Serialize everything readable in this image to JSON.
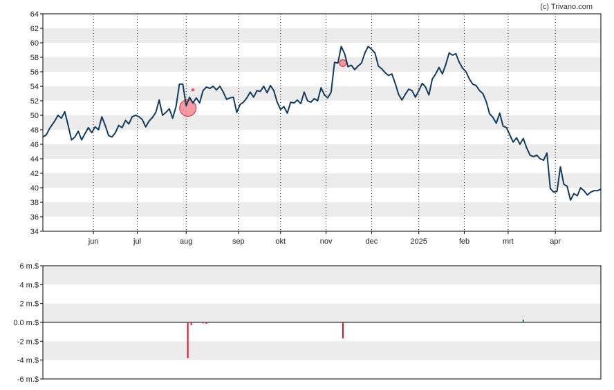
{
  "credit": "(c) Trivano.com",
  "colors": {
    "price_line": "#123a5c",
    "band": "#ececec",
    "sell_bar": "#e0102a",
    "buy_bar": "#1f7a3a",
    "marker_fill": "#f08a94",
    "marker_stroke": "#d9243a",
    "axis": "#000000",
    "grid": "#000000"
  },
  "chart_data": [
    {
      "type": "line",
      "title": "",
      "xlabel": "",
      "ylabel": "",
      "ylim": [
        34,
        64
      ],
      "yticks": [
        34,
        36,
        38,
        40,
        42,
        44,
        46,
        48,
        50,
        52,
        54,
        56,
        58,
        60,
        62,
        64
      ],
      "xlim_days": [
        0,
        331
      ],
      "x_ticks": [
        {
          "label": "jun",
          "day": 30
        },
        {
          "label": "jul",
          "day": 56
        },
        {
          "label": "aug",
          "day": 85
        },
        {
          "label": "sep",
          "day": 116
        },
        {
          "label": "okt",
          "day": 141
        },
        {
          "label": "nov",
          "day": 168
        },
        {
          "label": "dec",
          "day": 195
        },
        {
          "label": "2025",
          "day": 223
        },
        {
          "label": "feb",
          "day": 250
        },
        {
          "label": "mrt",
          "day": 276
        },
        {
          "label": "apr",
          "day": 304
        }
      ],
      "grid": "vertical dotted at month starts",
      "series": [
        {
          "values": [
            [
              0,
              47.0
            ],
            [
              2,
              47.3
            ],
            [
              4,
              48.2
            ],
            [
              7,
              49.2
            ],
            [
              9,
              50.0
            ],
            [
              11,
              49.6
            ],
            [
              13,
              50.5
            ],
            [
              15,
              48.6
            ],
            [
              17,
              46.6
            ],
            [
              19,
              47.0
            ],
            [
              21,
              47.8
            ],
            [
              23,
              46.6
            ],
            [
              25,
              47.5
            ],
            [
              27,
              48.3
            ],
            [
              29,
              47.6
            ],
            [
              31,
              48.4
            ],
            [
              33,
              48.0
            ],
            [
              35,
              49.8
            ],
            [
              37,
              48.6
            ],
            [
              39,
              47.2
            ],
            [
              41,
              47.0
            ],
            [
              43,
              47.6
            ],
            [
              45,
              48.6
            ],
            [
              47,
              48.3
            ],
            [
              49,
              49.3
            ],
            [
              51,
              48.8
            ],
            [
              53,
              49.8
            ],
            [
              55,
              50.0
            ],
            [
              57,
              49.8
            ],
            [
              59,
              49.4
            ],
            [
              61,
              48.4
            ],
            [
              63,
              49.2
            ],
            [
              65,
              49.7
            ],
            [
              67,
              50.4
            ],
            [
              69,
              52.1
            ],
            [
              71,
              50.0
            ],
            [
              73,
              50.4
            ],
            [
              75,
              50.9
            ],
            [
              77,
              49.6
            ],
            [
              79,
              51.2
            ],
            [
              81,
              54.3
            ],
            [
              83,
              54.3
            ],
            [
              85,
              51.3
            ],
            [
              87,
              52.5
            ],
            [
              89,
              51.7
            ],
            [
              91,
              52.4
            ],
            [
              93,
              51.7
            ],
            [
              95,
              53.4
            ],
            [
              97,
              53.9
            ],
            [
              99,
              53.7
            ],
            [
              101,
              54.0
            ],
            [
              103,
              53.5
            ],
            [
              105,
              54.0
            ],
            [
              107,
              53.2
            ],
            [
              109,
              52.2
            ],
            [
              111,
              52.4
            ],
            [
              113,
              52.5
            ],
            [
              115,
              50.4
            ],
            [
              117,
              51.5
            ],
            [
              119,
              51.8
            ],
            [
              121,
              52.4
            ],
            [
              123,
              53.2
            ],
            [
              125,
              52.5
            ],
            [
              127,
              53.4
            ],
            [
              129,
              53.3
            ],
            [
              131,
              54.0
            ],
            [
              133,
              53.1
            ],
            [
              135,
              54.1
            ],
            [
              137,
              53.4
            ],
            [
              139,
              51.8
            ],
            [
              141,
              50.8
            ],
            [
              143,
              51.2
            ],
            [
              145,
              50.3
            ],
            [
              147,
              51.8
            ],
            [
              149,
              51.7
            ],
            [
              151,
              52.1
            ],
            [
              153,
              51.6
            ],
            [
              155,
              53.2
            ],
            [
              157,
              52.0
            ],
            [
              159,
              51.8
            ],
            [
              161,
              52.3
            ],
            [
              163,
              52.0
            ],
            [
              165,
              53.8
            ],
            [
              167,
              52.8
            ],
            [
              169,
              52.4
            ],
            [
              171,
              53.2
            ],
            [
              173,
              57.3
            ],
            [
              175,
              57.2
            ],
            [
              177,
              59.5
            ],
            [
              179,
              58.5
            ],
            [
              181,
              56.7
            ],
            [
              183,
              56.9
            ],
            [
              185,
              56.3
            ],
            [
              187,
              56.8
            ],
            [
              189,
              57.2
            ],
            [
              191,
              58.6
            ],
            [
              193,
              59.5
            ],
            [
              195,
              59.1
            ],
            [
              197,
              58.6
            ],
            [
              199,
              56.8
            ],
            [
              201,
              56.4
            ],
            [
              203,
              55.9
            ],
            [
              205,
              55.5
            ],
            [
              207,
              55.7
            ],
            [
              209,
              54.4
            ],
            [
              211,
              52.9
            ],
            [
              213,
              52.1
            ],
            [
              215,
              52.9
            ],
            [
              217,
              53.6
            ],
            [
              219,
              53.4
            ],
            [
              221,
              52.5
            ],
            [
              223,
              53.4
            ],
            [
              225,
              54.4
            ],
            [
              227,
              53.9
            ],
            [
              229,
              52.8
            ],
            [
              231,
              55.0
            ],
            [
              233,
              55.7
            ],
            [
              235,
              56.6
            ],
            [
              237,
              55.7
            ],
            [
              239,
              57.0
            ],
            [
              241,
              58.6
            ],
            [
              243,
              58.3
            ],
            [
              245,
              58.5
            ],
            [
              247,
              57.3
            ],
            [
              249,
              56.5
            ],
            [
              251,
              56.0
            ],
            [
              253,
              55.0
            ],
            [
              255,
              54.3
            ],
            [
              257,
              54.1
            ],
            [
              259,
              53.4
            ],
            [
              261,
              53.0
            ],
            [
              263,
              51.9
            ],
            [
              265,
              50.2
            ],
            [
              267,
              49.7
            ],
            [
              269,
              48.9
            ],
            [
              271,
              50.3
            ],
            [
              273,
              48.5
            ],
            [
              275,
              48.3
            ],
            [
              277,
              47.3
            ],
            [
              279,
              46.3
            ],
            [
              281,
              46.9
            ],
            [
              283,
              46.0
            ],
            [
              285,
              46.8
            ],
            [
              287,
              45.5
            ],
            [
              289,
              44.5
            ],
            [
              291,
              44.3
            ],
            [
              293,
              44.5
            ],
            [
              295,
              44.0
            ],
            [
              297,
              43.8
            ],
            [
              299,
              44.8
            ],
            [
              301,
              39.9
            ],
            [
              303,
              39.4
            ],
            [
              305,
              39.5
            ],
            [
              307,
              42.9
            ],
            [
              309,
              40.5
            ],
            [
              311,
              40.2
            ],
            [
              313,
              38.3
            ],
            [
              315,
              39.2
            ],
            [
              317,
              38.9
            ],
            [
              319,
              40.0
            ],
            [
              321,
              39.6
            ],
            [
              323,
              39.0
            ],
            [
              325,
              39.4
            ],
            [
              327,
              39.6
            ],
            [
              329,
              39.6
            ],
            [
              331,
              39.8
            ]
          ]
        }
      ],
      "markers": [
        {
          "type": "sell",
          "day": 86,
          "value": 51.0,
          "size": "large"
        },
        {
          "type": "sell",
          "day": 178,
          "value": 57.2,
          "size": "small"
        },
        {
          "type": "sell",
          "day": 89,
          "value": 53.5,
          "size": "tiny"
        }
      ]
    },
    {
      "type": "bar",
      "title": "",
      "xlabel": "",
      "ylabel": "",
      "ylim": [
        -6,
        6
      ],
      "ytick_labels": [
        "6 m.$",
        "4 m.$",
        "2 m.$",
        "0.0 m.$",
        "-2 m.$",
        "-4 m.$",
        "-6 m.$"
      ],
      "yticks": [
        6,
        4,
        2,
        0,
        -2,
        -4,
        -6
      ],
      "series": [
        {
          "values": [
            {
              "day": 86,
              "value": -3.8
            },
            {
              "day": 88,
              "value": -0.3
            },
            {
              "day": 95,
              "value": -0.1
            },
            {
              "day": 97,
              "value": -0.15
            },
            {
              "day": 178,
              "value": -1.7
            },
            {
              "day": 285,
              "value": 0.3
            }
          ]
        }
      ]
    }
  ]
}
